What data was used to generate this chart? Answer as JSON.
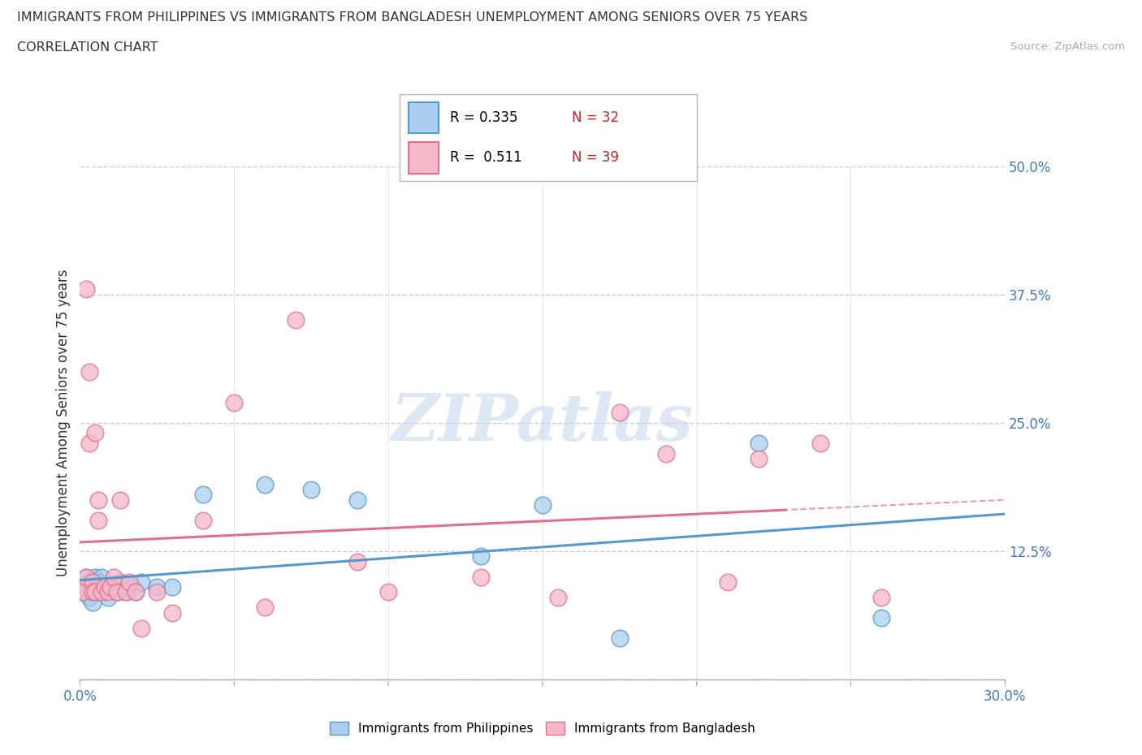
{
  "title": "IMMIGRANTS FROM PHILIPPINES VS IMMIGRANTS FROM BANGLADESH UNEMPLOYMENT AMONG SENIORS OVER 75 YEARS",
  "subtitle": "CORRELATION CHART",
  "source": "Source: ZipAtlas.com",
  "ylabel": "Unemployment Among Seniors over 75 years",
  "xlim": [
    0.0,
    0.3
  ],
  "ylim": [
    0.0,
    0.5
  ],
  "yticks": [
    0.0,
    0.125,
    0.25,
    0.375,
    0.5
  ],
  "ytick_labels": [
    "",
    "12.5%",
    "25.0%",
    "37.5%",
    "50.0%"
  ],
  "xtick_labels_show": [
    "0.0%",
    "30.0%"
  ],
  "xtick_positions_show": [
    0.0,
    0.3
  ],
  "grid_color": "#cccccc",
  "background_color": "#ffffff",
  "watermark": "ZIPatlas",
  "watermark_color": "#c8d8ed",
  "philippines_color": "#aacfee",
  "philippines_edge": "#5599cc",
  "bangladesh_color": "#f5b8c8",
  "bangladesh_edge": "#e07090",
  "R_philippines": 0.335,
  "N_philippines": 32,
  "R_bangladesh": 0.511,
  "N_bangladesh": 39,
  "philippines_x": [
    0.001,
    0.002,
    0.002,
    0.003,
    0.003,
    0.004,
    0.004,
    0.005,
    0.005,
    0.006,
    0.006,
    0.007,
    0.008,
    0.009,
    0.01,
    0.012,
    0.013,
    0.015,
    0.017,
    0.018,
    0.02,
    0.025,
    0.03,
    0.04,
    0.06,
    0.075,
    0.09,
    0.13,
    0.15,
    0.175,
    0.22,
    0.26
  ],
  "philippines_y": [
    0.085,
    0.09,
    0.1,
    0.095,
    0.08,
    0.085,
    0.075,
    0.09,
    0.1,
    0.085,
    0.095,
    0.1,
    0.085,
    0.08,
    0.09,
    0.085,
    0.095,
    0.085,
    0.09,
    0.085,
    0.095,
    0.09,
    0.09,
    0.18,
    0.19,
    0.185,
    0.175,
    0.12,
    0.17,
    0.04,
    0.23,
    0.06
  ],
  "bangladesh_x": [
    0.001,
    0.001,
    0.002,
    0.002,
    0.003,
    0.003,
    0.004,
    0.004,
    0.005,
    0.005,
    0.006,
    0.006,
    0.007,
    0.008,
    0.009,
    0.01,
    0.011,
    0.012,
    0.013,
    0.015,
    0.016,
    0.018,
    0.02,
    0.025,
    0.03,
    0.04,
    0.05,
    0.06,
    0.07,
    0.09,
    0.1,
    0.13,
    0.155,
    0.175,
    0.19,
    0.21,
    0.22,
    0.24,
    0.26
  ],
  "bangladesh_y": [
    0.09,
    0.085,
    0.38,
    0.1,
    0.3,
    0.23,
    0.095,
    0.085,
    0.24,
    0.085,
    0.175,
    0.155,
    0.085,
    0.09,
    0.085,
    0.09,
    0.1,
    0.085,
    0.175,
    0.085,
    0.095,
    0.085,
    0.05,
    0.085,
    0.065,
    0.155,
    0.27,
    0.07,
    0.35,
    0.115,
    0.085,
    0.1,
    0.08,
    0.26,
    0.22,
    0.095,
    0.215,
    0.23,
    0.08
  ]
}
